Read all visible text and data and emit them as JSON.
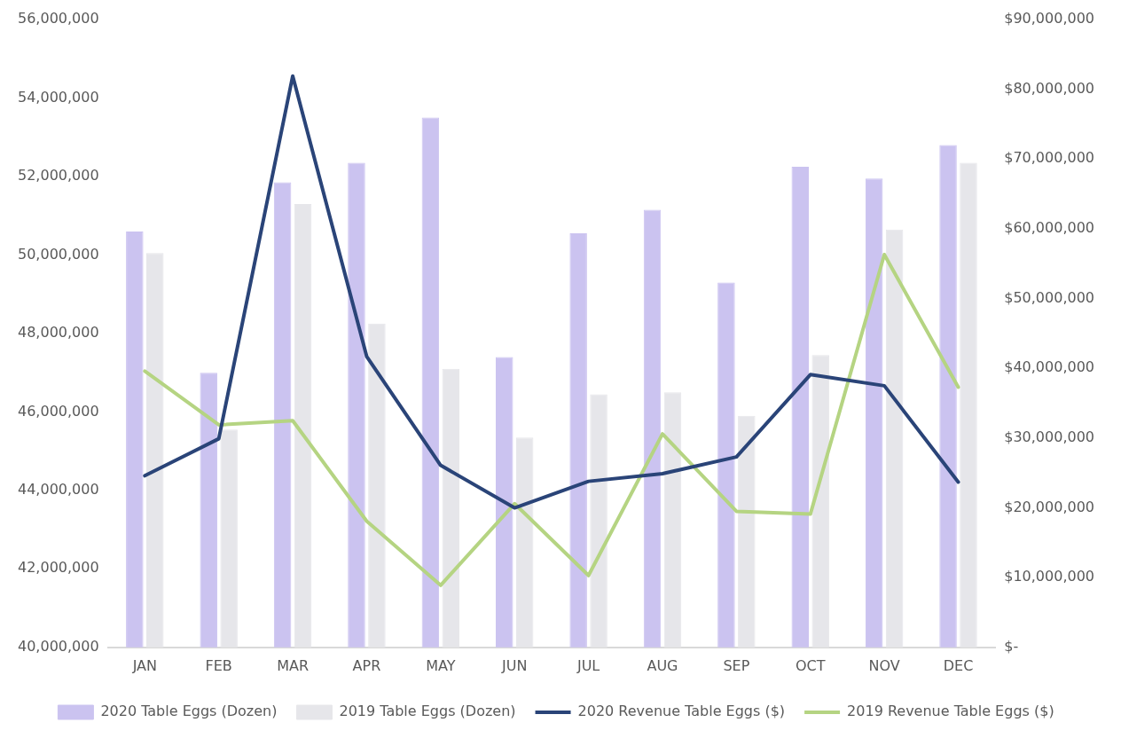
{
  "chart_data": {
    "type": "bar",
    "categories": [
      "JAN",
      "FEB",
      "MAR",
      "APR",
      "MAY",
      "JUN",
      "JUL",
      "AUG",
      "SEP",
      "OCT",
      "NOV",
      "DEC"
    ],
    "series": [
      {
        "name": "2020 Table Eggs (Dozen)",
        "color": "#cbc3f0",
        "values": [
          50600000,
          47000000,
          51850000,
          52350000,
          53500000,
          47400000,
          50550000,
          51150000,
          49300000,
          52250000,
          51950000,
          52800000
        ]
      },
      {
        "name": "2019 Table Eggs (Dozen)",
        "color": "#e6e6ea",
        "values": [
          50050000,
          45550000,
          51300000,
          48250000,
          47100000,
          45350000,
          46450000,
          46500000,
          45900000,
          47450000,
          50650000,
          52350000
        ]
      },
      {
        "name": "2020 Revenue Table Eggs ($)",
        "type": "line",
        "axis": "y2",
        "color": "#2a4478",
        "values": [
          24600000,
          29900000,
          81900000,
          41700000,
          26100000,
          20000000,
          23800000,
          24900000,
          27300000,
          39100000,
          37500000,
          23700000
        ]
      },
      {
        "name": "2019 Revenue Table Eggs ($)",
        "type": "line",
        "axis": "y2",
        "color": "#b5d482",
        "values": [
          39600000,
          31900000,
          32500000,
          18100000,
          8900000,
          20600000,
          10300000,
          30600000,
          19500000,
          19100000,
          56300000,
          37300000
        ]
      }
    ],
    "ylim": [
      40000000,
      56000000
    ],
    "yticks": [
      {
        "value": 40000000,
        "label": "40,000,000"
      },
      {
        "value": 42000000,
        "label": "42,000,000"
      },
      {
        "value": 44000000,
        "label": "44,000,000"
      },
      {
        "value": 46000000,
        "label": "46,000,000"
      },
      {
        "value": 48000000,
        "label": "48,000,000"
      },
      {
        "value": 50000000,
        "label": "50,000,000"
      },
      {
        "value": 52000000,
        "label": "52,000,000"
      },
      {
        "value": 54000000,
        "label": "54,000,000"
      },
      {
        "value": 56000000,
        "label": "56,000,000"
      }
    ],
    "y2lim": [
      0,
      90000000
    ],
    "y2ticks": [
      {
        "value": 0,
        "label": "$-"
      },
      {
        "value": 10000000,
        "label": "$10,000,000"
      },
      {
        "value": 20000000,
        "label": "$20,000,000"
      },
      {
        "value": 30000000,
        "label": "$30,000,000"
      },
      {
        "value": 40000000,
        "label": "$40,000,000"
      },
      {
        "value": 50000000,
        "label": "$50,000,000"
      },
      {
        "value": 60000000,
        "label": "$60,000,000"
      },
      {
        "value": 70000000,
        "label": "$70,000,000"
      },
      {
        "value": 80000000,
        "label": "$80,000,000"
      },
      {
        "value": 90000000,
        "label": "$90,000,000"
      }
    ],
    "grid": false,
    "legend": "bottom",
    "marker": "none",
    "line_style": "solid"
  }
}
